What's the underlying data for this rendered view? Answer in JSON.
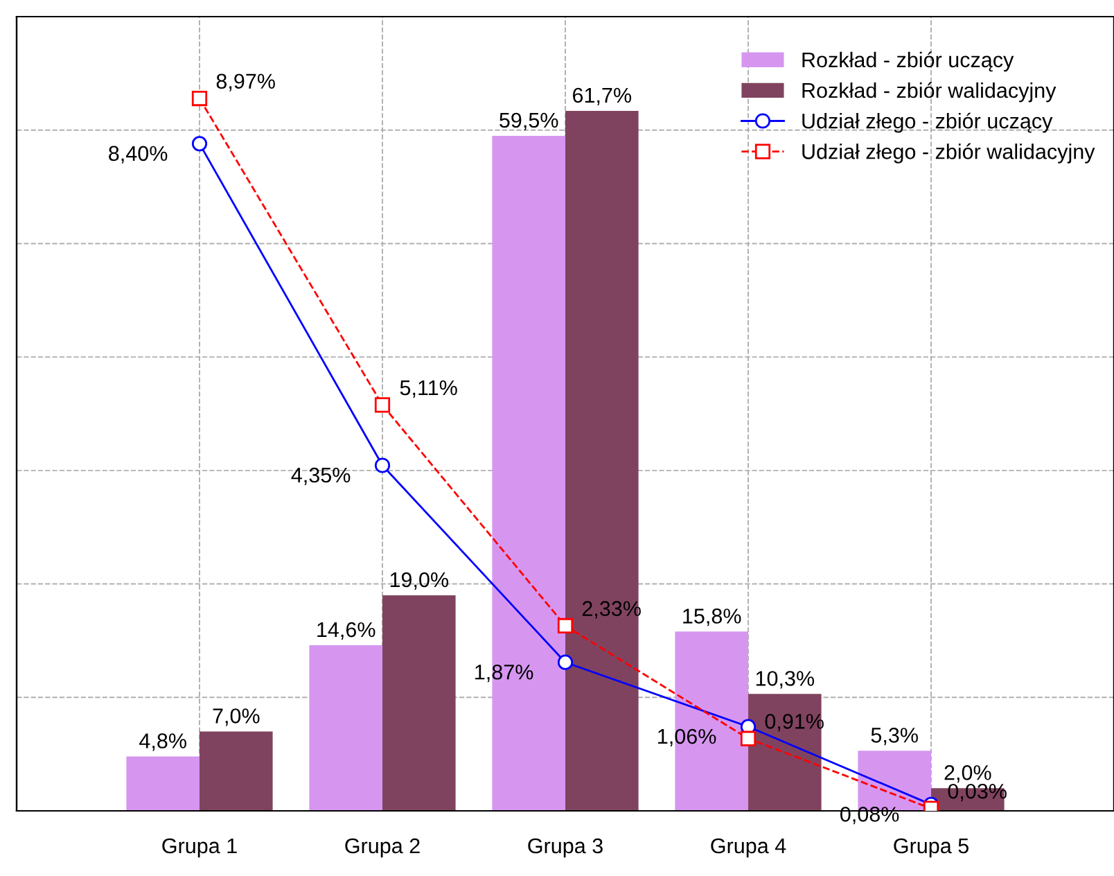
{
  "chart_data": {
    "type": "bar",
    "categories": [
      "Grupa 1",
      "Grupa 2",
      "Grupa 3",
      "Grupa 4",
      "Grupa 5"
    ],
    "series": [
      {
        "name": "Rozkład - zbiór uczący",
        "color": "#d696f0",
        "values": [
          4.8,
          14.6,
          59.5,
          15.8,
          5.3
        ],
        "value_labels": [
          "4,8%",
          "14,6%",
          "59,5%",
          "15,8%",
          "5,3%"
        ]
      },
      {
        "name": "Rozkład - zbiór walidacyjny",
        "color": "#80435f",
        "values": [
          7.0,
          19.0,
          61.7,
          10.3,
          2.0
        ],
        "value_labels": [
          "7,0%",
          "19,0%",
          "61,7%",
          "10,3%",
          "2,0%"
        ]
      },
      {
        "name": "Udział złego - zbiór uczący",
        "type": "line",
        "axis": "y2",
        "color": "#0000ff",
        "marker": "circle",
        "line_style": "solid",
        "values": [
          8.4,
          4.35,
          1.87,
          1.06,
          0.08
        ],
        "value_labels": [
          "8,40%",
          "4,35%",
          "1,87%",
          "1,06%",
          "0,08%"
        ]
      },
      {
        "name": "Udział złego - zbiór walidacyjny",
        "type": "line",
        "axis": "y2",
        "color": "#ff0000",
        "marker": "square",
        "line_style": "dashed",
        "values": [
          8.97,
          5.11,
          2.33,
          0.91,
          0.03
        ],
        "value_labels": [
          "8,97%",
          "5,11%",
          "2,33%",
          "0,91%",
          "0,03%"
        ]
      }
    ],
    "ylim": [
      0,
      70
    ],
    "y2lim": [
      0,
      10
    ],
    "tick_labels": "x",
    "grid": true,
    "legend": "top right"
  }
}
